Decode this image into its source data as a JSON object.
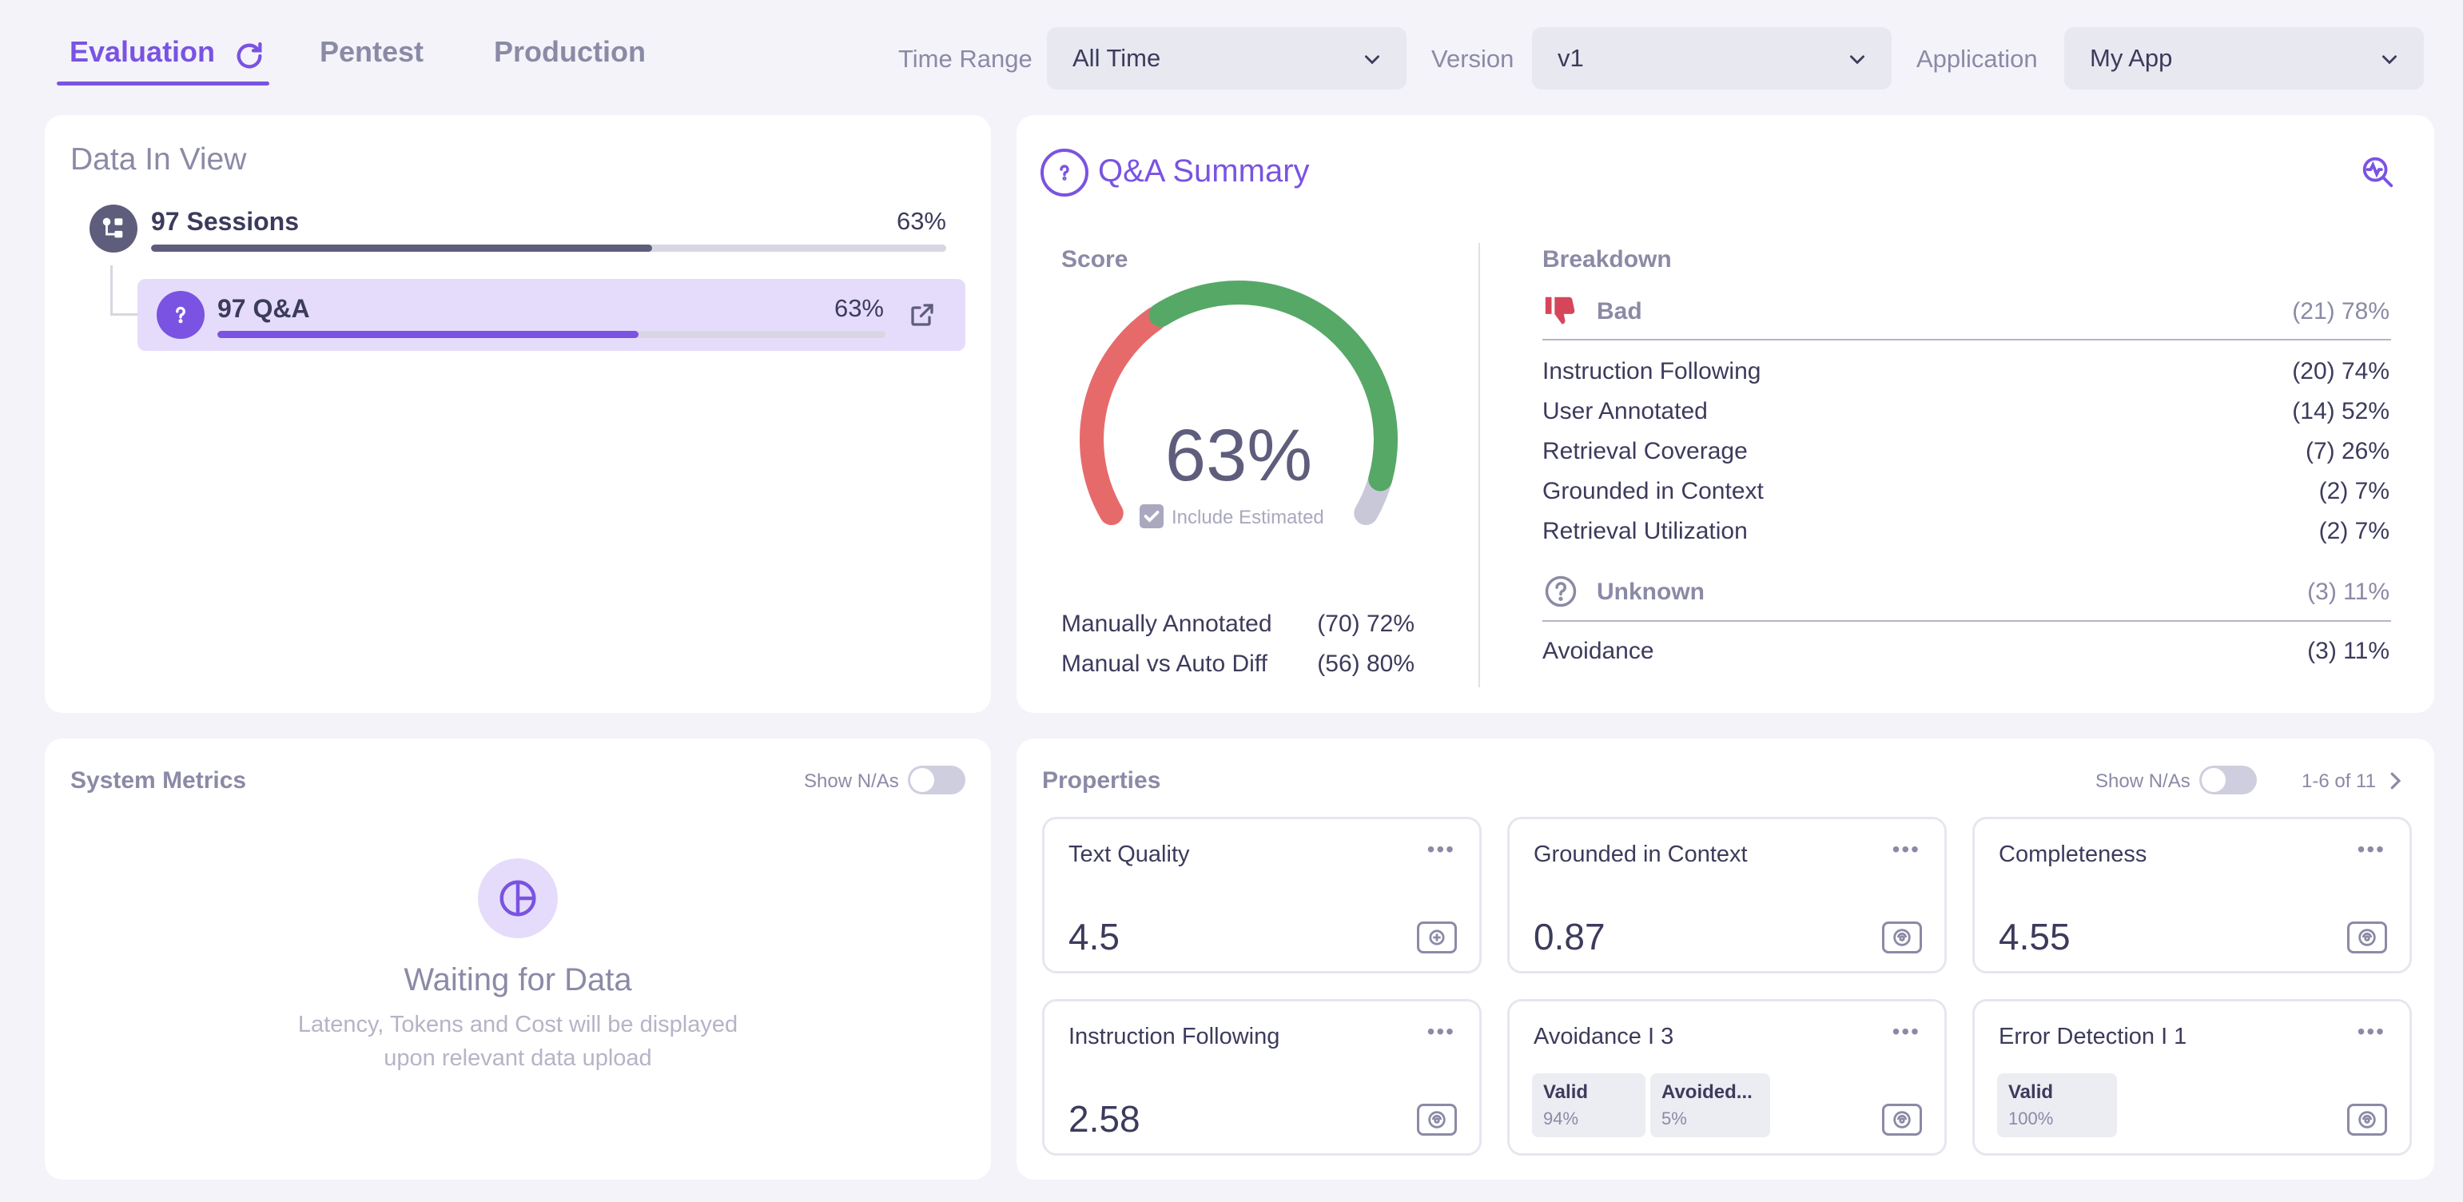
{
  "tabs": [
    {
      "label": "Evaluation",
      "active": true
    },
    {
      "label": "Pentest",
      "active": false
    },
    {
      "label": "Production",
      "active": false
    }
  ],
  "filters": {
    "time_range": {
      "label": "Time Range",
      "value": "All Time"
    },
    "version": {
      "label": "Version",
      "value": "v1"
    },
    "application": {
      "label": "Application",
      "value": "My App"
    }
  },
  "data_in_view": {
    "title": "Data In View",
    "sessions": {
      "label": "97 Sessions",
      "pct": "63%",
      "fill": 0.63
    },
    "qa": {
      "label": "97 Q&A",
      "pct": "63%",
      "fill": 0.63
    }
  },
  "qa_summary": {
    "title": "Q&A Summary",
    "score_label": "Score",
    "score_value": "63%",
    "score_fraction": 0.63,
    "include_estimated": "Include Estimated",
    "score_rows": [
      {
        "label": "Manually Annotated",
        "value": "(70) 72%"
      },
      {
        "label": "Manual vs Auto Diff",
        "value": "(56) 80%"
      }
    ],
    "breakdown_label": "Breakdown",
    "bad": {
      "label": "Bad",
      "value": "(21) 78%"
    },
    "bad_rows": [
      {
        "label": "Instruction Following",
        "value": "(20) 74%"
      },
      {
        "label": "User Annotated",
        "value": "(14) 52%"
      },
      {
        "label": "Retrieval Coverage",
        "value": "(7) 26%"
      },
      {
        "label": "Grounded in Context",
        "value": "(2) 7%"
      },
      {
        "label": "Retrieval Utilization",
        "value": "(2) 7%"
      }
    ],
    "unknown": {
      "label": "Unknown",
      "value": "(3) 11%"
    },
    "unknown_rows": [
      {
        "label": "Avoidance",
        "value": "(3) 11%"
      }
    ]
  },
  "system_metrics": {
    "title": "System Metrics",
    "show_nas": "Show N/As",
    "waiting_title": "Waiting for Data",
    "waiting_line1": "Latency, Tokens and Cost will be displayed",
    "waiting_line2": "upon relevant data upload"
  },
  "properties": {
    "title": "Properties",
    "show_nas": "Show N/As",
    "pagination": "1-6 of 11",
    "cards": [
      {
        "name": "Text Quality",
        "value": "4.5"
      },
      {
        "name": "Grounded in Context",
        "value": "0.87"
      },
      {
        "name": "Completeness",
        "value": "4.55"
      },
      {
        "name": "Instruction Following",
        "value": "2.58"
      },
      {
        "name": "Avoidance I 3",
        "chips": [
          {
            "name": "Valid",
            "pct": "94%"
          },
          {
            "name": "Avoided...",
            "pct": "5%"
          }
        ]
      },
      {
        "name": "Error Detection I 1",
        "chips": [
          {
            "name": "Valid",
            "pct": "100%"
          }
        ]
      }
    ]
  },
  "colors": {
    "accent": "#7a53e2",
    "good": "#56a866",
    "bad": "#e76a6a",
    "bad_icon": "#d6465a"
  }
}
